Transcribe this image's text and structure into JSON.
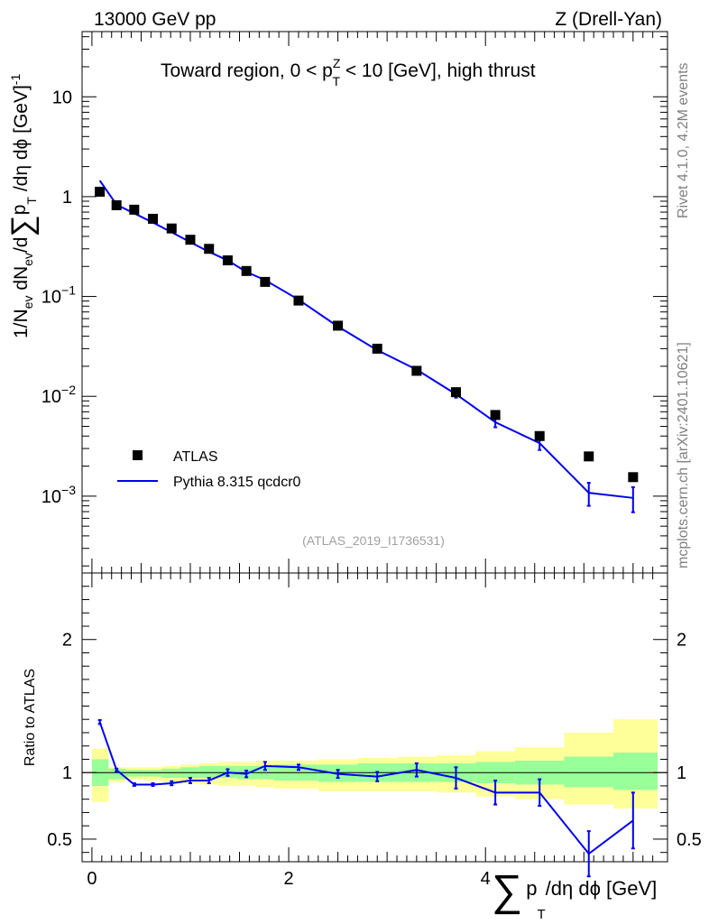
{
  "header": {
    "left": "13000 GeV pp",
    "right": "Z (Drell-Yan)"
  },
  "side": {
    "rivet": "Rivet 4.1.0,  4.2M events",
    "mcplots": "mcplots.cern.ch [arXiv:2401.10621]"
  },
  "main_panel": {
    "title_prefix": "Toward region, 0 < p",
    "title_sup": "Z",
    "title_sub": "T",
    "title_suffix": " < 10 [GeV], high thrust",
    "analysis_id": "(ATLAS_2019_I1736531)",
    "ylabel": "1/N",
    "ylabel_parts": [
      "1/N",
      "ev",
      " dN",
      "ev",
      "/d",
      "∑",
      "p",
      "T",
      " /dη dϕ  [GeV]",
      "-1"
    ],
    "y_ticks": [
      {
        "value": 0.001,
        "base": "10",
        "exp": "−3"
      },
      {
        "value": 0.01,
        "base": "10",
        "exp": "−2"
      },
      {
        "value": 0.1,
        "base": "10",
        "exp": "−1"
      },
      {
        "value": 1,
        "base": "1",
        "exp": ""
      },
      {
        "value": 10,
        "base": "10",
        "exp": ""
      }
    ]
  },
  "ratio_panel": {
    "ylabel": "Ratio to ATLAS",
    "y_ticks": [
      "0.5",
      "1",
      "2"
    ]
  },
  "x_axis": {
    "label_sum": "∑",
    "label_p": "p",
    "label_T": "T",
    "label_rest": "/dη dϕ [GeV]",
    "ticks": [
      "0",
      "2",
      "4"
    ]
  },
  "chart_data": {
    "type": "scatter",
    "title": "Toward region, 0 < pT^Z < 10 [GeV], high thrust",
    "xlabel": "∑ pT /dη dϕ [GeV]",
    "ylabel": "1/Nev dNev/d∑pT /dη dϕ [GeV]^-1",
    "xlim": [
      -0.1,
      5.85
    ],
    "ylim": [
      0.00017,
      45
    ],
    "yscale": "log",
    "ratio_ylim": [
      0.33,
      2.5
    ],
    "legend_position": "bottom-left",
    "legend": [
      "ATLAS",
      "Pythia 8.315 qcdcr0"
    ],
    "series": [
      {
        "name": "ATLAS",
        "style": "markers",
        "x": [
          0.08,
          0.25,
          0.43,
          0.62,
          0.81,
          1.0,
          1.19,
          1.38,
          1.57,
          1.76,
          2.1,
          2.5,
          2.9,
          3.3,
          3.7,
          4.1,
          4.55,
          5.05,
          5.5
        ],
        "y": [
          1.12,
          0.82,
          0.74,
          0.6,
          0.48,
          0.37,
          0.3,
          0.23,
          0.18,
          0.14,
          0.091,
          0.051,
          0.03,
          0.018,
          0.011,
          0.0065,
          0.004,
          0.0025,
          0.00155
        ]
      },
      {
        "name": "Pythia 8.315 qcdcr0",
        "style": "line",
        "color": "#0000ee",
        "x": [
          0.08,
          0.25,
          0.43,
          0.62,
          0.81,
          1.0,
          1.19,
          1.38,
          1.57,
          1.76,
          2.1,
          2.5,
          2.9,
          3.3,
          3.7,
          4.1,
          4.55,
          5.05,
          5.5
        ],
        "y": [
          1.45,
          0.83,
          0.68,
          0.55,
          0.44,
          0.35,
          0.28,
          0.23,
          0.176,
          0.146,
          0.093,
          0.05,
          0.029,
          0.0185,
          0.0105,
          0.0055,
          0.0034,
          0.00108,
          0.00096
        ],
        "yerr": [
          0,
          0,
          0,
          0,
          0,
          0,
          0,
          0,
          0,
          0,
          0,
          0,
          0,
          0,
          0.0008,
          0.0006,
          0.0005,
          0.00028,
          0.00027
        ],
        "ratio": [
          1.38,
          1.02,
          0.91,
          0.91,
          0.92,
          0.94,
          0.94,
          1.0,
          0.99,
          1.05,
          1.04,
          0.99,
          0.97,
          1.02,
          0.96,
          0.85,
          0.85,
          0.39,
          0.64
        ],
        "ratio_err": [
          0.015,
          0.01,
          0.01,
          0.01,
          0.015,
          0.02,
          0.02,
          0.025,
          0.025,
          0.03,
          0.02,
          0.03,
          0.035,
          0.05,
          0.08,
          0.09,
          0.1,
          0.17,
          0.21
        ]
      }
    ],
    "ratio_bands": {
      "edges": [
        0.0,
        0.17,
        0.34,
        0.52,
        0.71,
        0.9,
        1.09,
        1.28,
        1.47,
        1.66,
        1.85,
        2.3,
        2.7,
        3.1,
        3.5,
        3.9,
        4.3,
        4.8,
        5.3,
        5.75
      ],
      "green_lo": [
        0.9,
        0.95,
        0.97,
        0.97,
        0.96,
        0.96,
        0.96,
        0.96,
        0.95,
        0.95,
        0.94,
        0.93,
        0.93,
        0.93,
        0.93,
        0.92,
        0.91,
        0.89,
        0.87
      ],
      "green_hi": [
        1.1,
        1.03,
        1.02,
        1.02,
        1.03,
        1.04,
        1.05,
        1.05,
        1.05,
        1.05,
        1.06,
        1.06,
        1.07,
        1.07,
        1.07,
        1.08,
        1.09,
        1.12,
        1.15
      ],
      "yellow_lo": [
        0.78,
        0.93,
        0.95,
        0.94,
        0.93,
        0.92,
        0.91,
        0.9,
        0.9,
        0.89,
        0.88,
        0.86,
        0.86,
        0.86,
        0.85,
        0.82,
        0.8,
        0.76,
        0.73
      ],
      "yellow_hi": [
        1.18,
        1.04,
        1.04,
        1.04,
        1.05,
        1.06,
        1.07,
        1.08,
        1.08,
        1.09,
        1.09,
        1.1,
        1.11,
        1.12,
        1.13,
        1.16,
        1.19,
        1.3,
        1.4
      ]
    }
  }
}
